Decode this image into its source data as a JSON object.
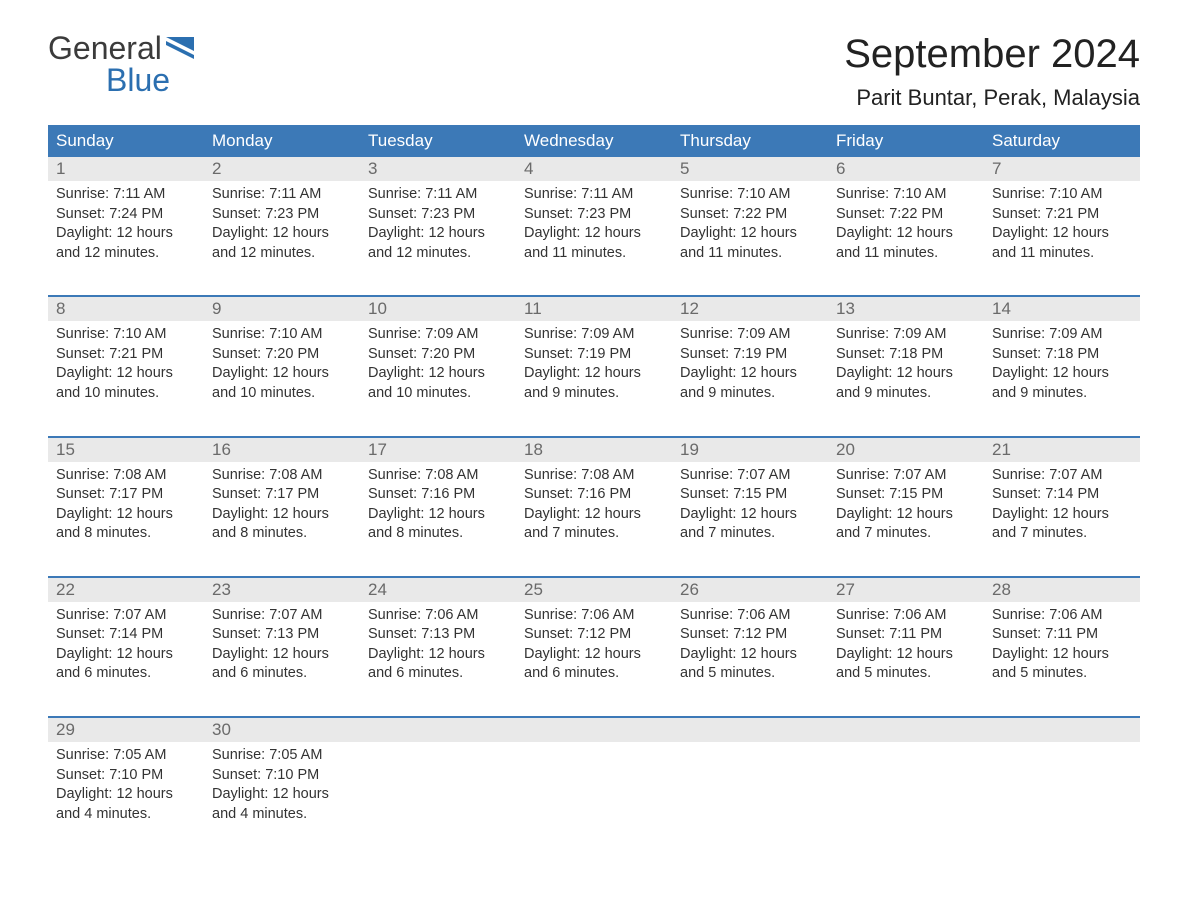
{
  "logo": {
    "text_general": "General",
    "text_blue": "Blue",
    "flag_color": "#2b6fb0"
  },
  "title": "September 2024",
  "location": "Parit Buntar, Perak, Malaysia",
  "colors": {
    "header_bg": "#3c79b7",
    "header_text": "#ffffff",
    "daynum_bg": "#e9e9e9",
    "daynum_text": "#6a6a6a",
    "week_border": "#3c79b7",
    "body_text": "#333333",
    "background": "#ffffff"
  },
  "fonts": {
    "title_size_pt": 30,
    "location_size_pt": 17,
    "dayname_size_pt": 13,
    "cell_size_pt": 11
  },
  "day_names": [
    "Sunday",
    "Monday",
    "Tuesday",
    "Wednesday",
    "Thursday",
    "Friday",
    "Saturday"
  ],
  "weeks": [
    [
      {
        "n": "1",
        "sunrise": "Sunrise: 7:11 AM",
        "sunset": "Sunset: 7:24 PM",
        "d1": "Daylight: 12 hours",
        "d2": "and 12 minutes."
      },
      {
        "n": "2",
        "sunrise": "Sunrise: 7:11 AM",
        "sunset": "Sunset: 7:23 PM",
        "d1": "Daylight: 12 hours",
        "d2": "and 12 minutes."
      },
      {
        "n": "3",
        "sunrise": "Sunrise: 7:11 AM",
        "sunset": "Sunset: 7:23 PM",
        "d1": "Daylight: 12 hours",
        "d2": "and 12 minutes."
      },
      {
        "n": "4",
        "sunrise": "Sunrise: 7:11 AM",
        "sunset": "Sunset: 7:23 PM",
        "d1": "Daylight: 12 hours",
        "d2": "and 11 minutes."
      },
      {
        "n": "5",
        "sunrise": "Sunrise: 7:10 AM",
        "sunset": "Sunset: 7:22 PM",
        "d1": "Daylight: 12 hours",
        "d2": "and 11 minutes."
      },
      {
        "n": "6",
        "sunrise": "Sunrise: 7:10 AM",
        "sunset": "Sunset: 7:22 PM",
        "d1": "Daylight: 12 hours",
        "d2": "and 11 minutes."
      },
      {
        "n": "7",
        "sunrise": "Sunrise: 7:10 AM",
        "sunset": "Sunset: 7:21 PM",
        "d1": "Daylight: 12 hours",
        "d2": "and 11 minutes."
      }
    ],
    [
      {
        "n": "8",
        "sunrise": "Sunrise: 7:10 AM",
        "sunset": "Sunset: 7:21 PM",
        "d1": "Daylight: 12 hours",
        "d2": "and 10 minutes."
      },
      {
        "n": "9",
        "sunrise": "Sunrise: 7:10 AM",
        "sunset": "Sunset: 7:20 PM",
        "d1": "Daylight: 12 hours",
        "d2": "and 10 minutes."
      },
      {
        "n": "10",
        "sunrise": "Sunrise: 7:09 AM",
        "sunset": "Sunset: 7:20 PM",
        "d1": "Daylight: 12 hours",
        "d2": "and 10 minutes."
      },
      {
        "n": "11",
        "sunrise": "Sunrise: 7:09 AM",
        "sunset": "Sunset: 7:19 PM",
        "d1": "Daylight: 12 hours",
        "d2": "and 9 minutes."
      },
      {
        "n": "12",
        "sunrise": "Sunrise: 7:09 AM",
        "sunset": "Sunset: 7:19 PM",
        "d1": "Daylight: 12 hours",
        "d2": "and 9 minutes."
      },
      {
        "n": "13",
        "sunrise": "Sunrise: 7:09 AM",
        "sunset": "Sunset: 7:18 PM",
        "d1": "Daylight: 12 hours",
        "d2": "and 9 minutes."
      },
      {
        "n": "14",
        "sunrise": "Sunrise: 7:09 AM",
        "sunset": "Sunset: 7:18 PM",
        "d1": "Daylight: 12 hours",
        "d2": "and 9 minutes."
      }
    ],
    [
      {
        "n": "15",
        "sunrise": "Sunrise: 7:08 AM",
        "sunset": "Sunset: 7:17 PM",
        "d1": "Daylight: 12 hours",
        "d2": "and 8 minutes."
      },
      {
        "n": "16",
        "sunrise": "Sunrise: 7:08 AM",
        "sunset": "Sunset: 7:17 PM",
        "d1": "Daylight: 12 hours",
        "d2": "and 8 minutes."
      },
      {
        "n": "17",
        "sunrise": "Sunrise: 7:08 AM",
        "sunset": "Sunset: 7:16 PM",
        "d1": "Daylight: 12 hours",
        "d2": "and 8 minutes."
      },
      {
        "n": "18",
        "sunrise": "Sunrise: 7:08 AM",
        "sunset": "Sunset: 7:16 PM",
        "d1": "Daylight: 12 hours",
        "d2": "and 7 minutes."
      },
      {
        "n": "19",
        "sunrise": "Sunrise: 7:07 AM",
        "sunset": "Sunset: 7:15 PM",
        "d1": "Daylight: 12 hours",
        "d2": "and 7 minutes."
      },
      {
        "n": "20",
        "sunrise": "Sunrise: 7:07 AM",
        "sunset": "Sunset: 7:15 PM",
        "d1": "Daylight: 12 hours",
        "d2": "and 7 minutes."
      },
      {
        "n": "21",
        "sunrise": "Sunrise: 7:07 AM",
        "sunset": "Sunset: 7:14 PM",
        "d1": "Daylight: 12 hours",
        "d2": "and 7 minutes."
      }
    ],
    [
      {
        "n": "22",
        "sunrise": "Sunrise: 7:07 AM",
        "sunset": "Sunset: 7:14 PM",
        "d1": "Daylight: 12 hours",
        "d2": "and 6 minutes."
      },
      {
        "n": "23",
        "sunrise": "Sunrise: 7:07 AM",
        "sunset": "Sunset: 7:13 PM",
        "d1": "Daylight: 12 hours",
        "d2": "and 6 minutes."
      },
      {
        "n": "24",
        "sunrise": "Sunrise: 7:06 AM",
        "sunset": "Sunset: 7:13 PM",
        "d1": "Daylight: 12 hours",
        "d2": "and 6 minutes."
      },
      {
        "n": "25",
        "sunrise": "Sunrise: 7:06 AM",
        "sunset": "Sunset: 7:12 PM",
        "d1": "Daylight: 12 hours",
        "d2": "and 6 minutes."
      },
      {
        "n": "26",
        "sunrise": "Sunrise: 7:06 AM",
        "sunset": "Sunset: 7:12 PM",
        "d1": "Daylight: 12 hours",
        "d2": "and 5 minutes."
      },
      {
        "n": "27",
        "sunrise": "Sunrise: 7:06 AM",
        "sunset": "Sunset: 7:11 PM",
        "d1": "Daylight: 12 hours",
        "d2": "and 5 minutes."
      },
      {
        "n": "28",
        "sunrise": "Sunrise: 7:06 AM",
        "sunset": "Sunset: 7:11 PM",
        "d1": "Daylight: 12 hours",
        "d2": "and 5 minutes."
      }
    ],
    [
      {
        "n": "29",
        "sunrise": "Sunrise: 7:05 AM",
        "sunset": "Sunset: 7:10 PM",
        "d1": "Daylight: 12 hours",
        "d2": "and 4 minutes."
      },
      {
        "n": "30",
        "sunrise": "Sunrise: 7:05 AM",
        "sunset": "Sunset: 7:10 PM",
        "d1": "Daylight: 12 hours",
        "d2": "and 4 minutes."
      },
      null,
      null,
      null,
      null,
      null
    ]
  ]
}
